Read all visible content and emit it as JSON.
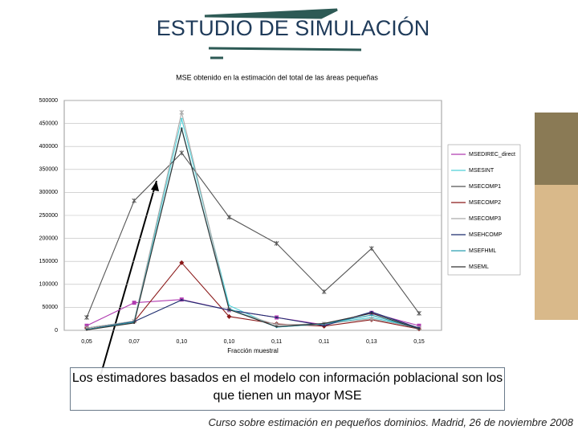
{
  "slide": {
    "title": "ESTUDIO DE SIMULACIÓN",
    "callout": "Los estimadores basados en el modelo con información poblacional son los que tienen un mayor MSE",
    "footer": "Curso sobre estimación en pequeños dominios. Madrid, 26 de noviembre 2008"
  },
  "chart_data": {
    "type": "line",
    "title": "MSE obtenido en la estimación del total de las áreas pequeñas",
    "x_label": "Fracción muestral",
    "categories": [
      "0,05",
      "0,07",
      "0,10",
      "0,10",
      "0,11",
      "0,11",
      "0,13",
      "0,15"
    ],
    "ylim": [
      0,
      500000
    ],
    "yticks": [
      0,
      50000,
      100000,
      150000,
      200000,
      250000,
      300000,
      350000,
      400000,
      450000,
      500000
    ],
    "grid": true,
    "legend": "right",
    "series": [
      {
        "name": "MSEDIREC_direct",
        "color": "#b03cb0",
        "marker": "square",
        "values": [
          10000,
          60000,
          67000,
          44000,
          28000,
          12000,
          38000,
          10000
        ]
      },
      {
        "name": "MSESINT",
        "color": "#4fd0d8",
        "marker": "none",
        "values": [
          5000,
          20000,
          460000,
          54000,
          7000,
          14000,
          28000,
          5000
        ]
      },
      {
        "name": "MSECOMP1",
        "color": "#555555",
        "marker": "star",
        "values": [
          28000,
          282000,
          386000,
          246000,
          189000,
          84000,
          178000,
          37000
        ]
      },
      {
        "name": "MSECOMP2",
        "color": "#8b1a1a",
        "marker": "diamond",
        "values": [
          5000,
          19000,
          147000,
          30000,
          14000,
          9000,
          23000,
          3000
        ]
      },
      {
        "name": "MSECOMP3",
        "color": "#aaaaaa",
        "marker": "star",
        "values": [
          5000,
          20000,
          474000,
          45000,
          12000,
          14000,
          25000,
          5000
        ]
      },
      {
        "name": "MSEHCOMP",
        "color": "#1a2a6c",
        "marker": "none",
        "values": [
          2000,
          19000,
          66000,
          44000,
          28000,
          10000,
          40000,
          5000
        ]
      },
      {
        "name": "MSEFHML",
        "color": "#2a9fb0",
        "marker": "none",
        "values": [
          2000,
          18000,
          440000,
          47000,
          7000,
          14000,
          33000,
          3000
        ]
      },
      {
        "name": "MSEML",
        "color": "#333333",
        "marker": "none",
        "values": [
          1000,
          16000,
          438000,
          45000,
          8000,
          15000,
          37000,
          3000
        ]
      }
    ]
  }
}
